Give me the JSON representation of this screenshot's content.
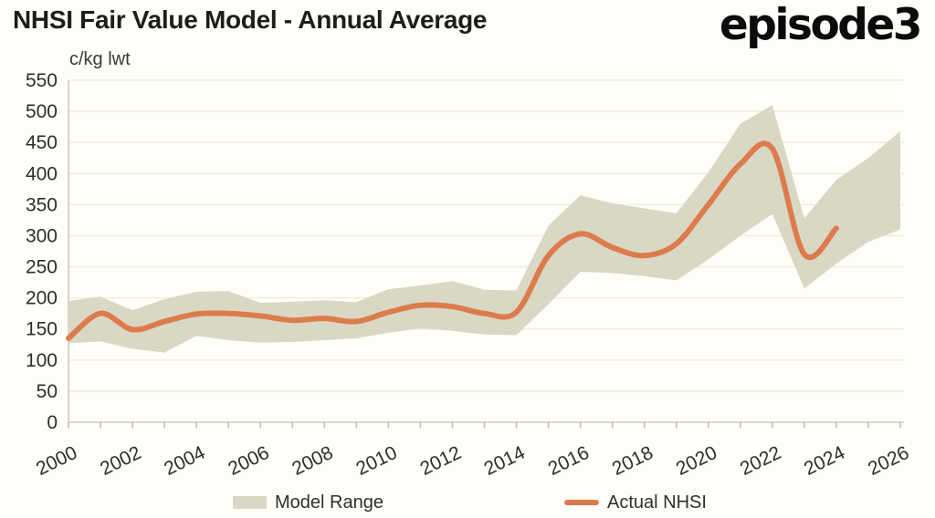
{
  "header": {
    "title": "NHSI Fair Value Model - Annual Average",
    "logo": "episode3"
  },
  "colors": {
    "band": "#d9d8c4",
    "line": "#dd7b4d",
    "gridline": "#f0ede1",
    "axis": "#cfcdc2",
    "tick": "#bdbbb2",
    "label_text": "#2d2d2d"
  },
  "chart_data": {
    "type": "area",
    "title": "NHSI Fair Value Model - Annual Average",
    "unit_label": "c/kg lwt",
    "xlabel": "",
    "ylabel": "c/kg lwt",
    "ylim": [
      0,
      550
    ],
    "y_tick_step": 50,
    "y_ticks": [
      0,
      50,
      100,
      150,
      200,
      250,
      300,
      350,
      400,
      450,
      500,
      550
    ],
    "x": [
      2000,
      2001,
      2002,
      2003,
      2004,
      2005,
      2006,
      2007,
      2008,
      2009,
      2010,
      2011,
      2012,
      2013,
      2014,
      2015,
      2016,
      2017,
      2018,
      2019,
      2020,
      2021,
      2022,
      2023,
      2024,
      2025,
      2026
    ],
    "x_tick_labels": [
      2000,
      2002,
      2004,
      2006,
      2008,
      2010,
      2012,
      2014,
      2016,
      2018,
      2020,
      2022,
      2024,
      2026
    ],
    "grid": "horizontal",
    "legend_position": "bottom",
    "series": [
      {
        "name": "Model Range",
        "type": "band",
        "low": [
          127,
          130,
          118,
          112,
          139,
          132,
          128,
          129,
          132,
          135,
          144,
          151,
          147,
          141,
          140,
          190,
          242,
          240,
          235,
          228,
          262,
          300,
          335,
          215,
          255,
          290,
          310
        ],
        "high": [
          195,
          202,
          180,
          198,
          210,
          211,
          192,
          194,
          196,
          193,
          214,
          220,
          227,
          213,
          212,
          316,
          365,
          352,
          344,
          336,
          402,
          480,
          510,
          328,
          390,
          425,
          468
        ]
      },
      {
        "name": "Actual NHSI",
        "type": "line",
        "values": [
          135,
          175,
          149,
          162,
          174,
          175,
          171,
          164,
          167,
          162,
          177,
          188,
          186,
          175,
          177,
          268,
          303,
          281,
          268,
          287,
          350,
          415,
          440,
          270,
          312,
          null,
          null
        ]
      }
    ]
  }
}
